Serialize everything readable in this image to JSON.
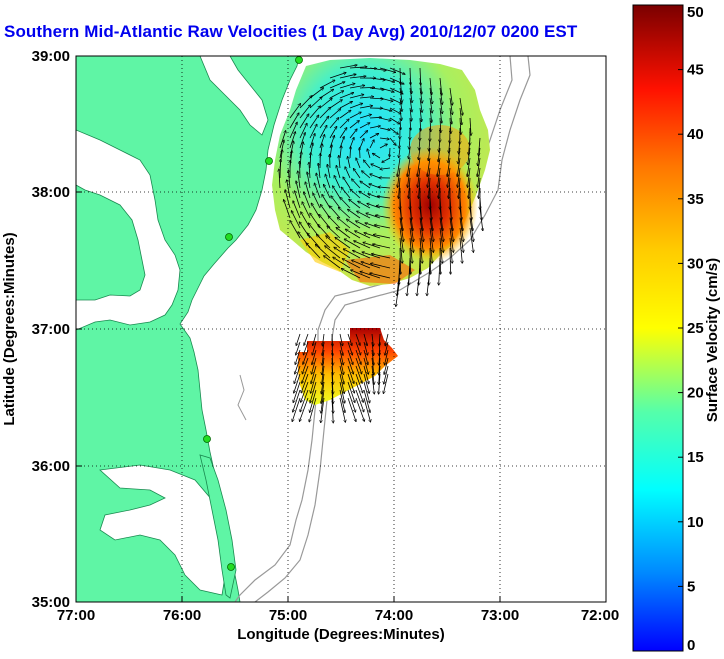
{
  "title": "Southern Mid-Atlantic Raw Velocities (1 Day Avg) 2010/12/07 0200 EST",
  "map": {
    "x_axis": {
      "label": "Longitude (Degrees:Minutes)",
      "ticks": [
        "77:00",
        "76:00",
        "75:00",
        "74:00",
        "73:00",
        "72:00"
      ],
      "range": [
        -77,
        -72
      ]
    },
    "y_axis": {
      "label": "Latitude (Degrees:Minutes)",
      "ticks": [
        "35:00",
        "36:00",
        "37:00",
        "38:00",
        "39:00"
      ],
      "range": [
        35,
        39
      ]
    },
    "grid": "dotted",
    "land_color": "#5ff5a5",
    "station_color": "#22dd22"
  },
  "colorbar": {
    "label": "Surface Velocity (cm/s)",
    "ticks": [
      "0",
      "5",
      "10",
      "15",
      "20",
      "25",
      "30",
      "35",
      "40",
      "45",
      "50"
    ],
    "range": [
      0,
      50
    ]
  },
  "chart_data": {
    "type": "heatmap",
    "quantity": "surface velocity",
    "units": "cm/s",
    "regions": [
      {
        "region": "northern coverage",
        "lon_range": [
          -75.1,
          -73.0
        ],
        "lat_range": [
          37.3,
          38.95
        ],
        "speed_min": 8,
        "speed_max": 50
      },
      {
        "region": "southern coverage",
        "lon_range": [
          -74.95,
          -74.15
        ],
        "lat_range": [
          36.55,
          37.0
        ],
        "speed_min": 20,
        "speed_max": 50
      }
    ]
  }
}
